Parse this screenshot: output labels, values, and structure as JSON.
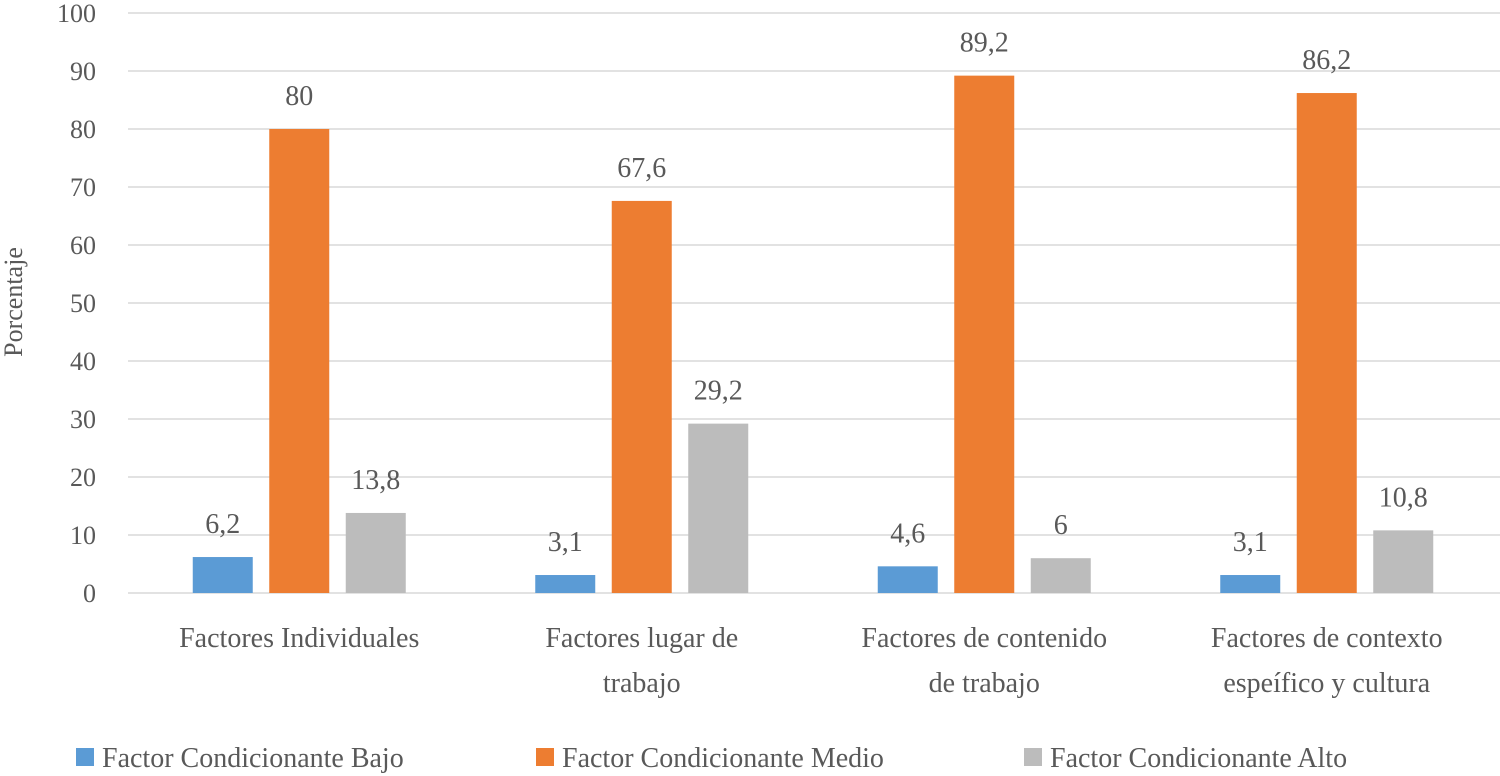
{
  "chart_data": {
    "type": "bar",
    "title": "",
    "xlabel": "",
    "ylabel": "Porcentaje",
    "ylim": [
      0,
      100
    ],
    "yticks": [
      0,
      10,
      20,
      30,
      40,
      50,
      60,
      70,
      80,
      90,
      100
    ],
    "grid": true,
    "legend_position": "bottom",
    "categories": [
      [
        "Factores Individuales"
      ],
      [
        "Factores lugar de",
        "trabajo"
      ],
      [
        "Factores de contenido",
        "de trabajo"
      ],
      [
        "Factores de contexto",
        "espeífico y cultura"
      ]
    ],
    "series": [
      {
        "name": "Factor Condicionante Bajo",
        "color": "#5b9bd5",
        "values": [
          6.2,
          3.1,
          4.6,
          3.1
        ],
        "labels": [
          "6,2",
          "3,1",
          "4,6",
          "3,1"
        ]
      },
      {
        "name": "Factor Condicionante Medio",
        "color": "#ed7d31",
        "values": [
          80,
          67.6,
          89.2,
          86.2
        ],
        "labels": [
          "80",
          "67,6",
          "89,2",
          "86,2"
        ]
      },
      {
        "name": "Factor Condicionante Alto",
        "color": "#bcbcbc",
        "values": [
          13.8,
          29.2,
          6,
          10.8
        ],
        "labels": [
          "13,8",
          "29,2",
          "6",
          "10,8"
        ]
      }
    ]
  }
}
